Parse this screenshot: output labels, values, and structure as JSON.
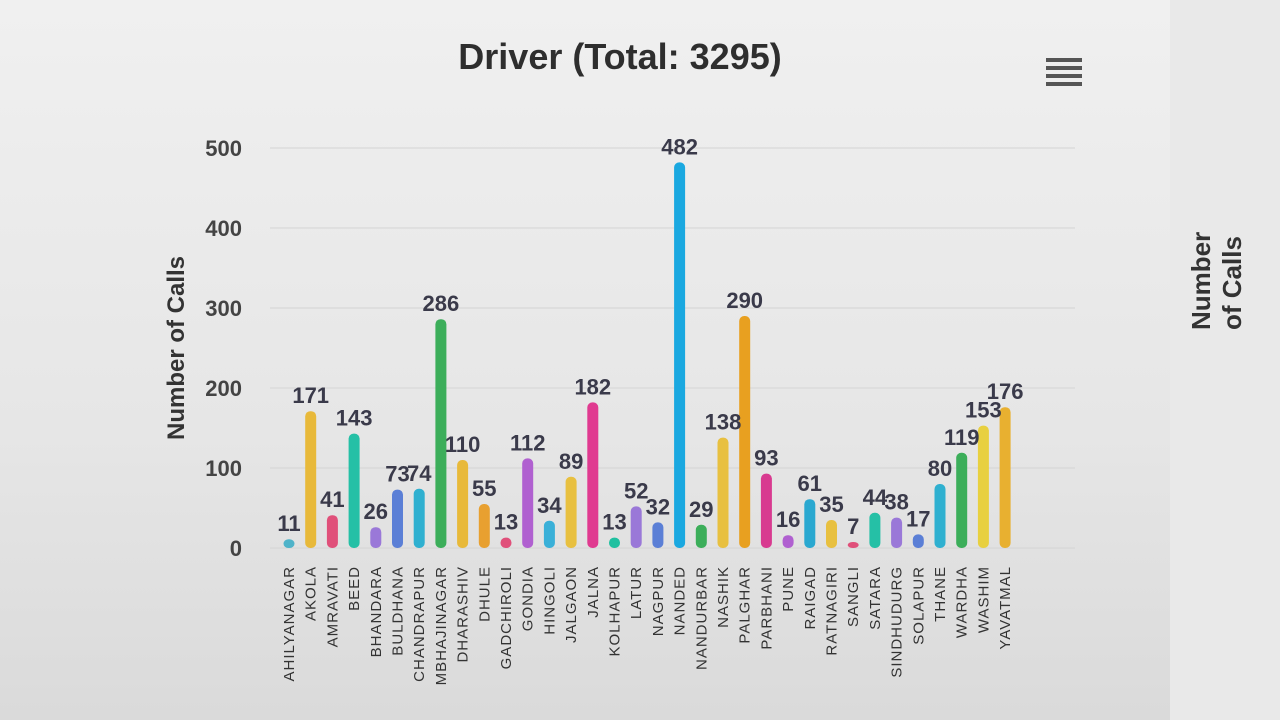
{
  "chart": {
    "title": "Driver (Total: 3295)",
    "menu_icon": "hamburger-menu-icon"
  },
  "side_panel": {
    "axis_label": "Number of Calls"
  },
  "chart_data": {
    "type": "bar",
    "title": "Driver (Total: 3295)",
    "xlabel": "",
    "ylabel": "Number of Calls",
    "ylim": [
      0,
      500
    ],
    "yticks": [
      0,
      100,
      200,
      300,
      400,
      500
    ],
    "grid": true,
    "categories": [
      "AHILYANAGAR",
      "AKOLA",
      "AMRAVATI",
      "BEED",
      "BHANDARA",
      "BULDHANA",
      "CHANDRAPUR",
      "MBHAJINAGAR",
      "DHARASHIV",
      "DHULE",
      "GADCHIROLI",
      "GONDIA",
      "HINGOLI",
      "JALGAON",
      "JALNA",
      "KOLHAPUR",
      "LATUR",
      "NAGPUR",
      "NANDED",
      "NANDURBAR",
      "NASHIK",
      "PALGHAR",
      "PARBHANI",
      "PUNE",
      "RAIGAD",
      "RATNAGIRI",
      "SANGLI",
      "SATARA",
      "SINDHUDURG",
      "SOLAPUR",
      "THANE",
      "WARDHA",
      "WASHIM",
      "YAVATMAL"
    ],
    "values": [
      11,
      171,
      41,
      143,
      26,
      73,
      74,
      286,
      110,
      55,
      13,
      112,
      34,
      89,
      182,
      13,
      52,
      32,
      482,
      29,
      138,
      290,
      93,
      16,
      61,
      35,
      7,
      44,
      38,
      17,
      80,
      119,
      153,
      176
    ],
    "colors": [
      "#4fb3c9",
      "#e8b93a",
      "#e0507a",
      "#25c0a6",
      "#9a78d8",
      "#5b7fd6",
      "#2fb0d0",
      "#3cae5a",
      "#e8b93a",
      "#e8a030",
      "#e0507a",
      "#b060d0",
      "#3ab0d8",
      "#e8c040",
      "#e03a90",
      "#20c0a0",
      "#9a78d8",
      "#5b7fd6",
      "#1aa8e0",
      "#3cae5a",
      "#e8c040",
      "#e8a020",
      "#d83a90",
      "#b060d0",
      "#2aa8d0",
      "#e8c040",
      "#e0507a",
      "#25c0a6",
      "#9a78d8",
      "#5b7fd6",
      "#2fb0d0",
      "#3cae5a",
      "#e8d040",
      "#e8b030"
    ]
  }
}
